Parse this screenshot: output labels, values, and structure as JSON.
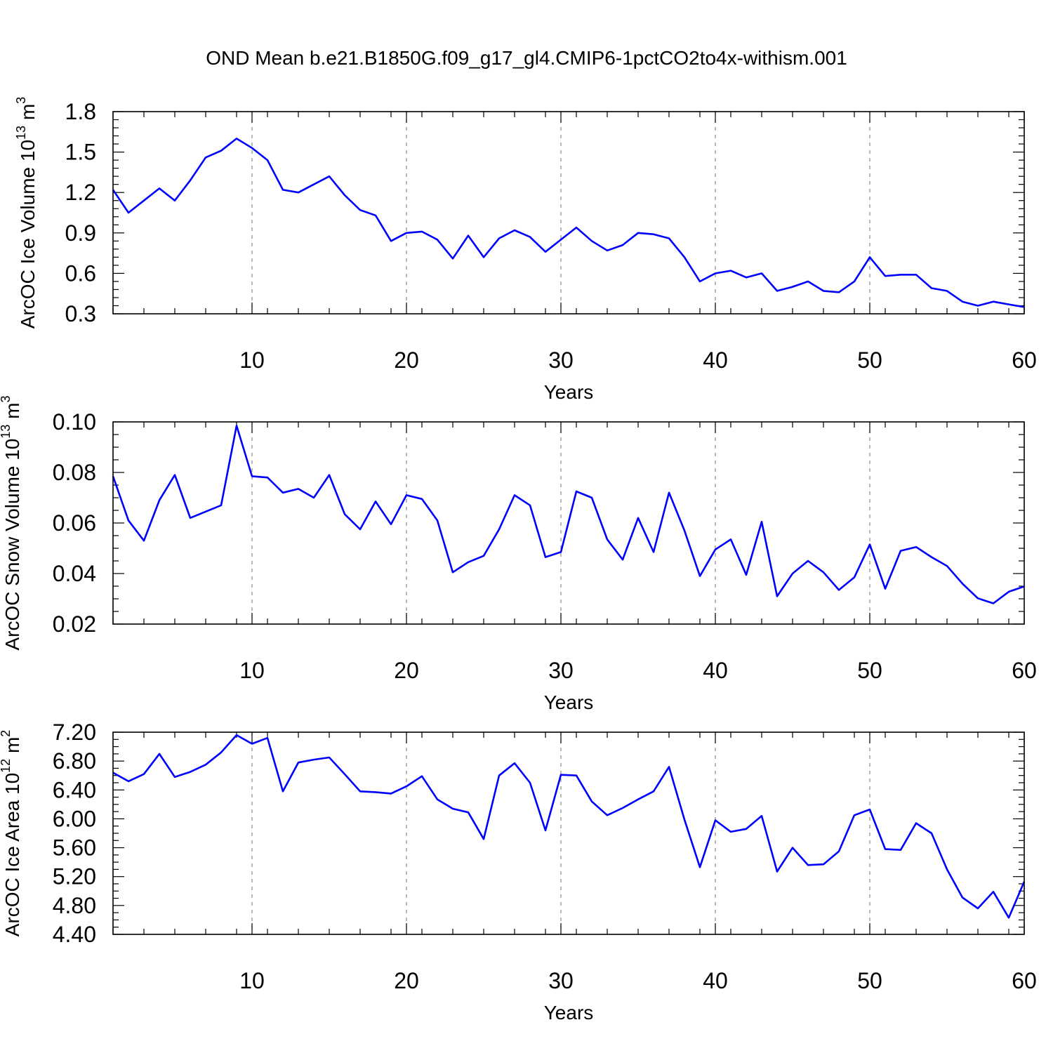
{
  "title": "OND Mean b.e21.B1850G.f09_g17_gl4.CMIP6-1pctCO2to4x-withism.001",
  "chart_data": [
    {
      "type": "line",
      "xlabel": "Years",
      "ylabel": "ArcOC Ice Volume 10",
      "ylabel_exp": "13",
      "ylabel_unit": " m",
      "ylabel_unit_exp": "3",
      "xlim": [
        1,
        60
      ],
      "ylim": [
        0.3,
        1.8
      ],
      "xticks": [
        10,
        20,
        30,
        40,
        50,
        60
      ],
      "yticks": [
        "0.3",
        "0.6",
        "0.9",
        "1.2",
        "1.5",
        "1.8"
      ],
      "grid": "vertical dashed at major x ticks",
      "color": "#0000ff",
      "x": [
        1,
        2,
        3,
        4,
        5,
        6,
        7,
        8,
        9,
        10,
        11,
        12,
        13,
        14,
        15,
        16,
        17,
        18,
        19,
        20,
        21,
        22,
        23,
        24,
        25,
        26,
        27,
        28,
        29,
        30,
        31,
        32,
        33,
        34,
        35,
        36,
        37,
        38,
        39,
        40,
        41,
        42,
        43,
        44,
        45,
        46,
        47,
        48,
        49,
        50,
        51,
        52,
        53,
        54,
        55,
        56,
        57,
        58,
        59,
        60
      ],
      "values": [
        1.22,
        1.05,
        1.14,
        1.23,
        1.14,
        1.29,
        1.46,
        1.51,
        1.6,
        1.53,
        1.44,
        1.22,
        1.2,
        1.26,
        1.32,
        1.18,
        1.07,
        1.03,
        0.84,
        0.9,
        0.91,
        0.85,
        0.71,
        0.88,
        0.72,
        0.86,
        0.92,
        0.87,
        0.76,
        0.85,
        0.94,
        0.84,
        0.77,
        0.81,
        0.9,
        0.89,
        0.86,
        0.72,
        0.54,
        0.6,
        0.62,
        0.57,
        0.6,
        0.47,
        0.5,
        0.54,
        0.47,
        0.46,
        0.54,
        0.72,
        0.58,
        0.59,
        0.59,
        0.49,
        0.47,
        0.39,
        0.36,
        0.39,
        0.37,
        0.35
      ]
    },
    {
      "type": "line",
      "xlabel": "Years",
      "ylabel": "ArcOC Snow Volume 10",
      "ylabel_exp": "13",
      "ylabel_unit": " m",
      "ylabel_unit_exp": "3",
      "xlim": [
        1,
        60
      ],
      "ylim": [
        0.02,
        0.1
      ],
      "xticks": [
        10,
        20,
        30,
        40,
        50,
        60
      ],
      "yticks": [
        "0.02",
        "0.04",
        "0.06",
        "0.08",
        "0.10"
      ],
      "grid": "vertical dashed at major x ticks",
      "color": "#0000ff",
      "x": [
        1,
        2,
        3,
        4,
        5,
        6,
        7,
        8,
        9,
        10,
        11,
        12,
        13,
        14,
        15,
        16,
        17,
        18,
        19,
        20,
        21,
        22,
        23,
        24,
        25,
        26,
        27,
        28,
        29,
        30,
        31,
        32,
        33,
        34,
        35,
        36,
        37,
        38,
        39,
        40,
        41,
        42,
        43,
        44,
        45,
        46,
        47,
        48,
        49,
        50,
        51,
        52,
        53,
        54,
        55,
        56,
        57,
        58,
        59,
        60
      ],
      "values": [
        0.0785,
        0.061,
        0.053,
        0.069,
        0.079,
        0.062,
        0.0645,
        0.067,
        0.0985,
        0.0785,
        0.078,
        0.072,
        0.0735,
        0.07,
        0.079,
        0.0635,
        0.0575,
        0.0685,
        0.0595,
        0.071,
        0.0695,
        0.061,
        0.0405,
        0.0445,
        0.047,
        0.0575,
        0.071,
        0.067,
        0.0465,
        0.0485,
        0.0725,
        0.07,
        0.0535,
        0.0455,
        0.062,
        0.0485,
        0.072,
        0.057,
        0.039,
        0.0495,
        0.0535,
        0.0395,
        0.0605,
        0.031,
        0.04,
        0.045,
        0.0405,
        0.0335,
        0.0385,
        0.0515,
        0.034,
        0.049,
        0.0505,
        0.0465,
        0.043,
        0.036,
        0.0302,
        0.0282,
        0.0328,
        0.0349
      ]
    },
    {
      "type": "line",
      "xlabel": "Years",
      "ylabel": "ArcOC Ice Area 10",
      "ylabel_exp": "12",
      "ylabel_unit": " m",
      "ylabel_unit_exp": "2",
      "xlim": [
        1,
        60
      ],
      "ylim": [
        4.4,
        7.2
      ],
      "xticks": [
        10,
        20,
        30,
        40,
        50,
        60
      ],
      "yticks": [
        "4.40",
        "4.80",
        "5.20",
        "5.60",
        "6.00",
        "6.40",
        "6.80",
        "7.20"
      ],
      "grid": "vertical dashed at major x ticks",
      "color": "#0000ff",
      "x": [
        1,
        2,
        3,
        4,
        5,
        6,
        7,
        8,
        9,
        10,
        11,
        12,
        13,
        14,
        15,
        16,
        17,
        18,
        19,
        20,
        21,
        22,
        23,
        24,
        25,
        26,
        27,
        28,
        29,
        30,
        31,
        32,
        33,
        34,
        35,
        36,
        37,
        38,
        39,
        40,
        41,
        42,
        43,
        44,
        45,
        46,
        47,
        48,
        49,
        50,
        51,
        52,
        53,
        54,
        55,
        56,
        57,
        58,
        59,
        60
      ],
      "values": [
        6.64,
        6.52,
        6.62,
        6.9,
        6.58,
        6.65,
        6.75,
        6.92,
        7.16,
        7.04,
        7.12,
        6.38,
        6.78,
        6.82,
        6.85,
        6.62,
        6.38,
        6.37,
        6.35,
        6.45,
        6.59,
        6.27,
        6.14,
        6.09,
        5.72,
        6.6,
        6.77,
        6.5,
        5.84,
        6.61,
        6.6,
        6.24,
        6.05,
        6.15,
        6.27,
        6.38,
        6.72,
        5.99,
        5.33,
        5.98,
        5.82,
        5.86,
        6.04,
        5.27,
        5.6,
        5.36,
        5.37,
        5.55,
        6.05,
        6.13,
        5.58,
        5.57,
        5.94,
        5.8,
        5.3,
        4.91,
        4.76,
        4.99,
        4.63,
        5.13
      ]
    }
  ]
}
